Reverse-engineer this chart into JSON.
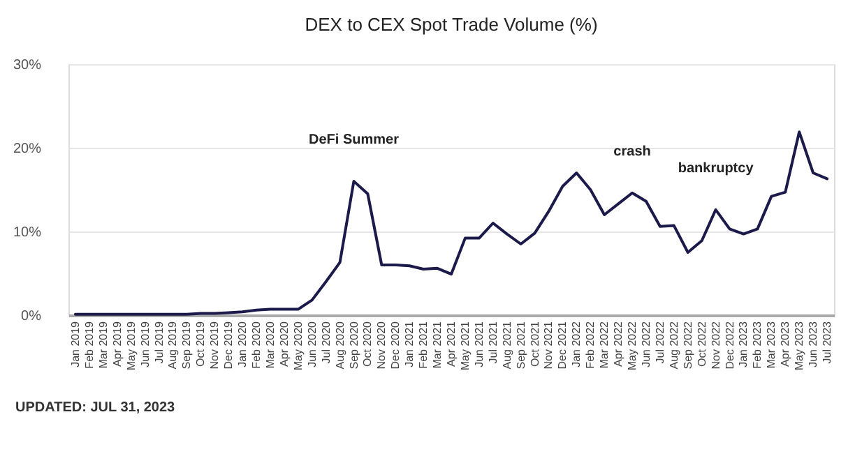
{
  "chart_data": {
    "type": "line",
    "title": "DEX to CEX Spot Trade Volume (%)",
    "categories": [
      "Jan 2019",
      "Feb 2019",
      "Mar 2019",
      "Apr 2019",
      "May 2019",
      "Jun 2019",
      "Jul 2019",
      "Aug 2019",
      "Sep 2019",
      "Oct 2019",
      "Nov 2019",
      "Dec 2019",
      "Jan 2020",
      "Feb 2020",
      "Mar 2020",
      "Apr 2020",
      "May 2020",
      "Jun 2020",
      "Jul 2020",
      "Aug 2020",
      "Sep 2020",
      "Oct 2020",
      "Nov 2020",
      "Dec 2020",
      "Jan 2021",
      "Feb 2021",
      "Mar 2021",
      "Apr 2021",
      "May 2021",
      "Jun 2021",
      "Jul 2021",
      "Aug 2021",
      "Sep 2021",
      "Oct 2021",
      "Nov 2021",
      "Dec 2021",
      "Jan 2022",
      "Feb 2022",
      "Mar 2022",
      "Apr 2022",
      "May 2022",
      "Jun 2022",
      "Jul 2022",
      "Aug 2022",
      "Sep 2022",
      "Oct 2022",
      "Nov 2022",
      "Dec 2022",
      "Jan 2023",
      "Feb 2023",
      "Mar 2023",
      "Apr 2023",
      "May 2023",
      "Jun 2023",
      "Jul 2023"
    ],
    "series": [
      {
        "color": "#1b1a4a",
        "values": [
          0.1,
          0.1,
          0.1,
          0.1,
          0.1,
          0.1,
          0.1,
          0.1,
          0.1,
          0.2,
          0.2,
          0.3,
          0.4,
          0.6,
          0.7,
          0.7,
          0.7,
          1.8,
          4.0,
          6.3,
          16.0,
          14.5,
          6.0,
          6.0,
          5.9,
          5.5,
          5.6,
          4.9,
          9.2,
          9.2,
          11.0,
          9.7,
          8.5,
          9.8,
          12.4,
          15.4,
          17.0,
          15.0,
          12.0,
          13.3,
          14.6,
          13.6,
          10.6,
          10.7,
          7.5,
          8.9,
          12.6,
          10.3,
          9.7,
          10.3,
          14.2,
          14.7,
          21.9,
          17.0,
          16.3
        ]
      }
    ],
    "ylim": [
      0,
      30
    ],
    "yticks": [
      {
        "value": 0,
        "label": "0%"
      },
      {
        "value": 10,
        "label": "10%"
      },
      {
        "value": 20,
        "label": "20%"
      },
      {
        "value": 30,
        "label": "30%"
      }
    ],
    "grid": "y",
    "marker": "none",
    "line_style": "solid",
    "annotations": [
      {
        "text": "DeFi Summer",
        "x": "Sep 2020",
        "y": 16.0
      },
      {
        "text": "crash",
        "x": "May 2022",
        "y": 14.6
      },
      {
        "text": "bankruptcy",
        "x": "Nov 2022",
        "y": 12.6
      },
      "UPDATED: JUL 31, 2023"
    ]
  }
}
